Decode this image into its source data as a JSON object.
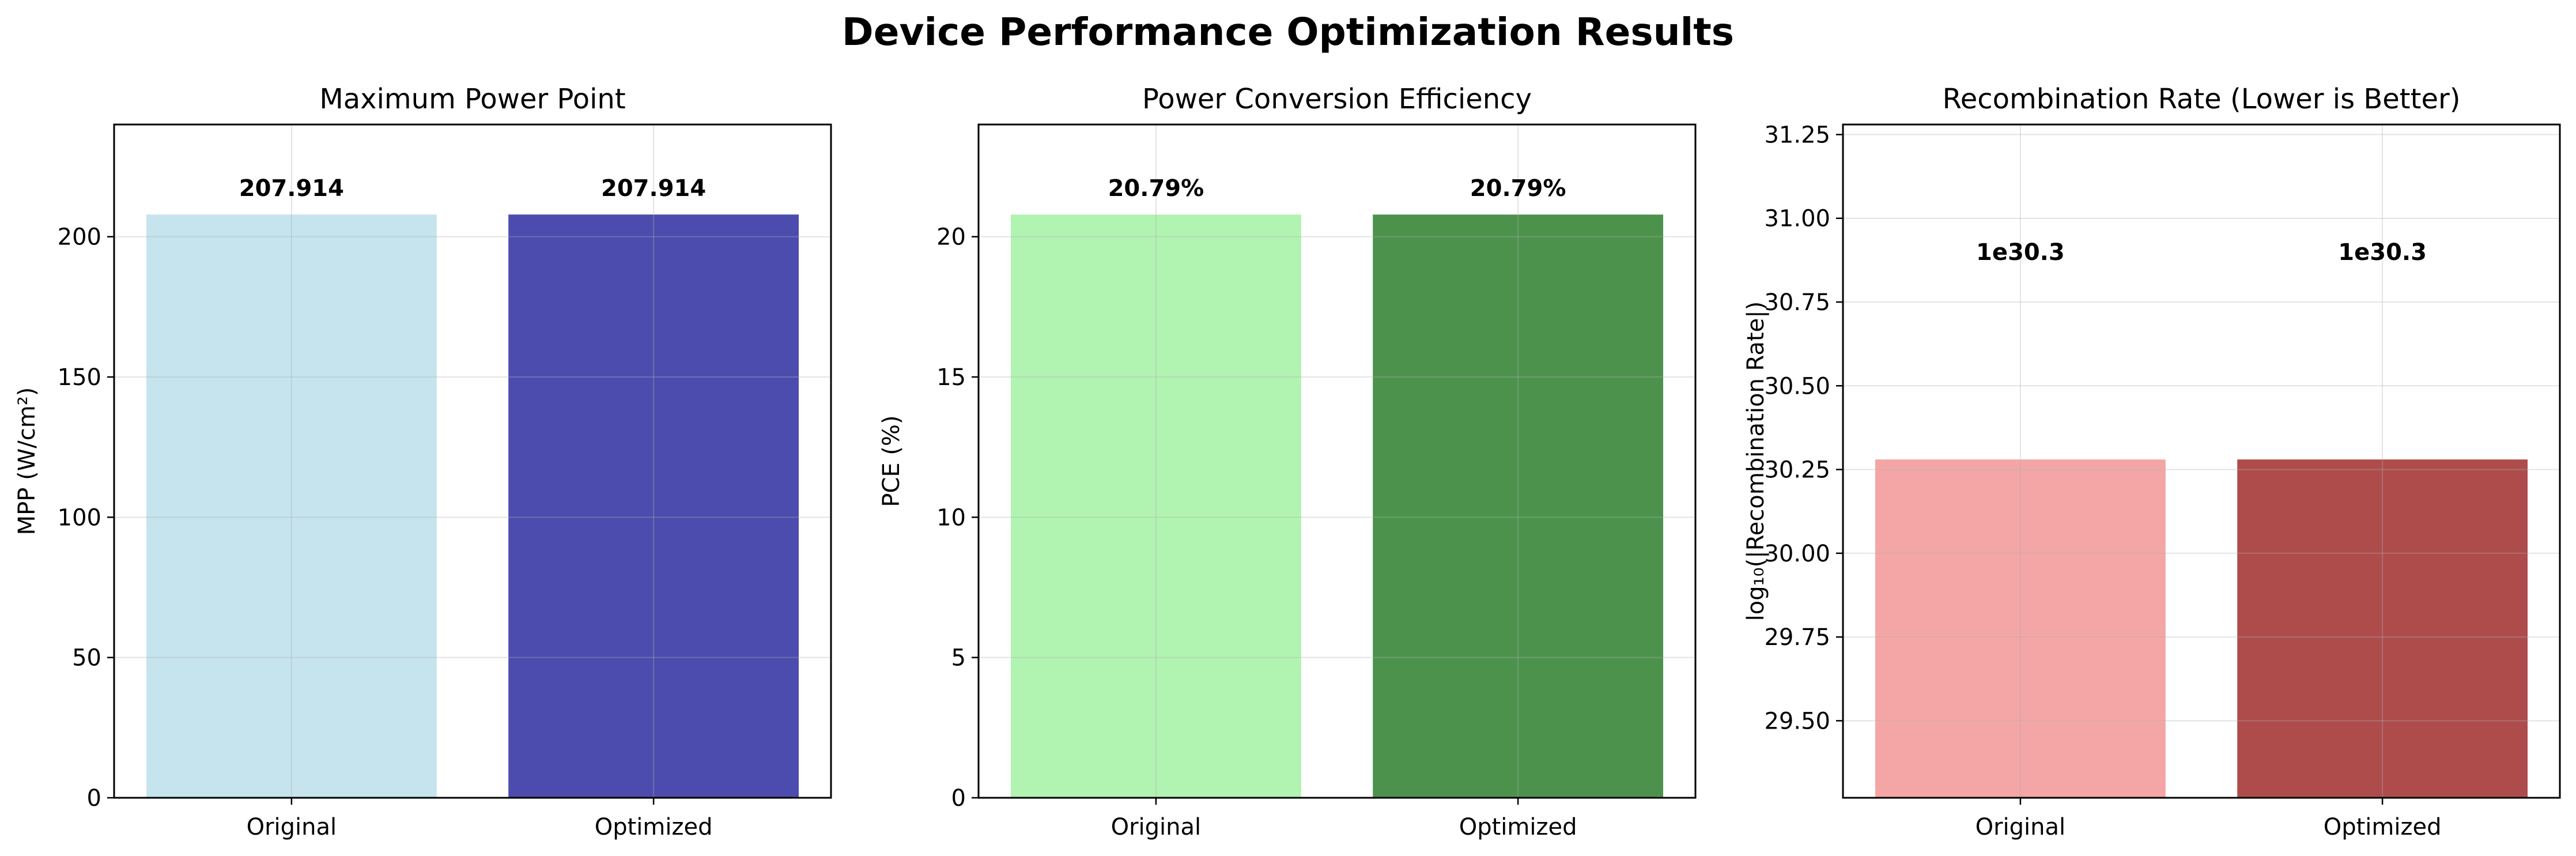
{
  "figure": {
    "title": "Device Performance Optimization Results"
  },
  "chart_data": [
    {
      "type": "bar",
      "title": "Maximum Power Point",
      "xlabel": "",
      "ylabel": "MPP (W/cm²)",
      "categories": [
        "Original",
        "Optimized"
      ],
      "values": [
        207.914,
        207.914
      ],
      "data_labels": [
        "207.914",
        "207.914"
      ],
      "colors": [
        "#add8e6",
        "#00008b"
      ],
      "bar_alpha": 0.7,
      "ylim": [
        0,
        240
      ],
      "yticks": [
        0,
        50,
        100,
        150,
        200
      ],
      "ytick_labels": [
        "0",
        "50",
        "100",
        "150",
        "200"
      ],
      "grid": true
    },
    {
      "type": "bar",
      "title": "Power Conversion Efficiency",
      "xlabel": "",
      "ylabel": "PCE (%)",
      "categories": [
        "Original",
        "Optimized"
      ],
      "values": [
        20.79,
        20.79
      ],
      "data_labels": [
        "20.79%",
        "20.79%"
      ],
      "colors": [
        "#90ee90",
        "#006400"
      ],
      "bar_alpha": 0.7,
      "ylim": [
        0,
        24
      ],
      "yticks": [
        0,
        5,
        10,
        15,
        20
      ],
      "ytick_labels": [
        "0",
        "5",
        "10",
        "15",
        "20"
      ],
      "grid": true
    },
    {
      "type": "bar",
      "title": "Recombination Rate (Lower is Better)",
      "xlabel": "",
      "ylabel": "log₁₀(|Recombination Rate|)",
      "categories": [
        "Original",
        "Optimized"
      ],
      "values": [
        30.28,
        30.28
      ],
      "data_labels": [
        "1e30.3",
        "1e30.3"
      ],
      "data_label_value": 30.9,
      "colors": [
        "#f08080",
        "#8b0000"
      ],
      "bar_alpha": 0.7,
      "ylim": [
        29.27,
        31.28
      ],
      "yticks": [
        29.5,
        29.75,
        30.0,
        30.25,
        30.5,
        30.75,
        31.0,
        31.25
      ],
      "ytick_labels": [
        "29.50",
        "29.75",
        "30.00",
        "30.25",
        "30.50",
        "30.75",
        "31.00",
        "31.25"
      ],
      "grid": true
    }
  ]
}
